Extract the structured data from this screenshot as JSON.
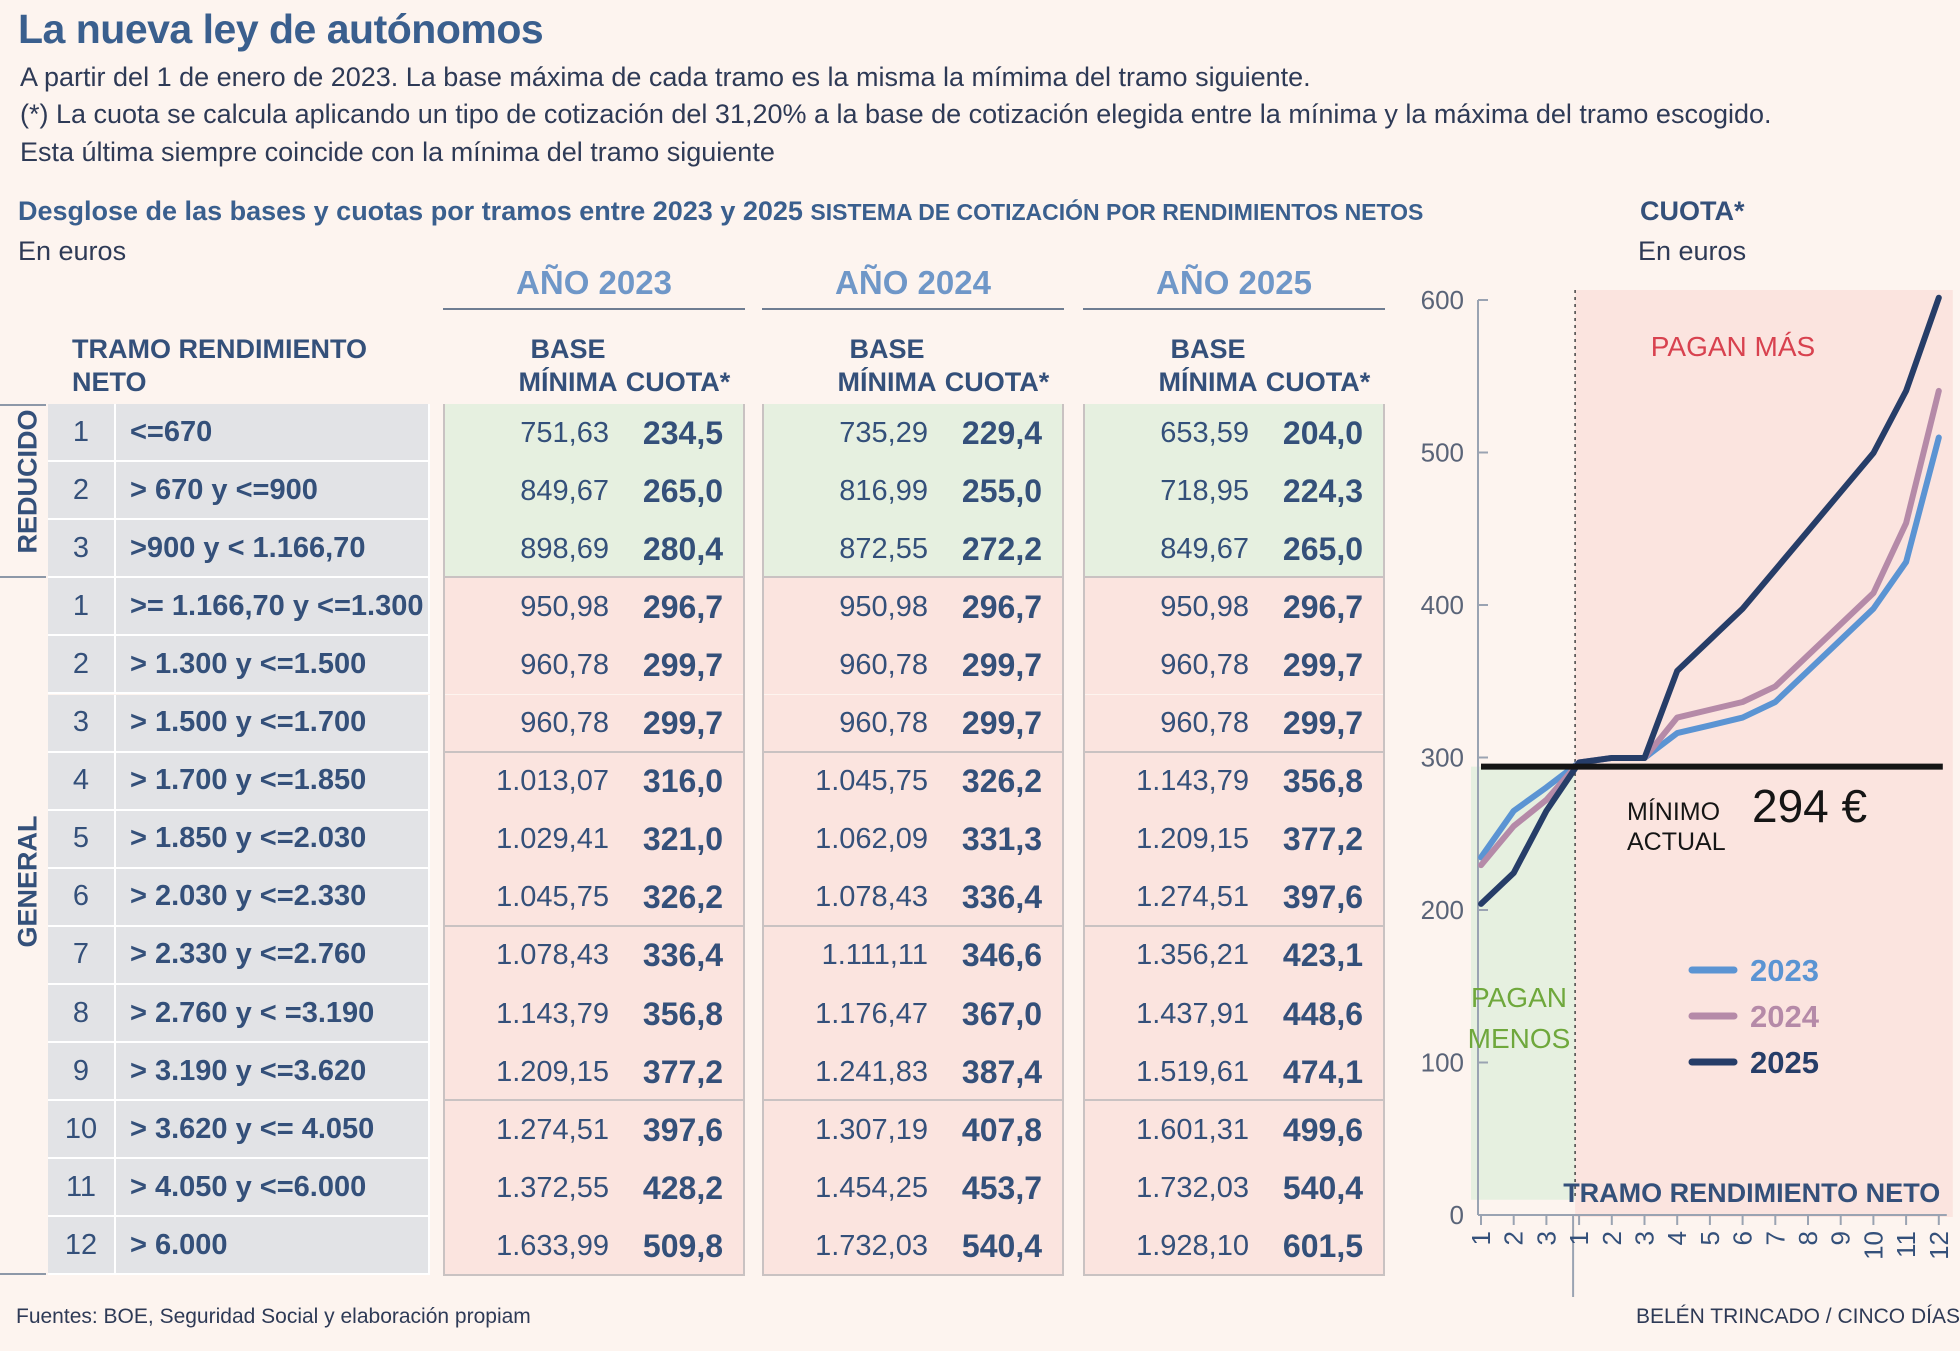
{
  "title": "La nueva ley de autónomos",
  "subtitle_lines": [
    "A partir del 1 de enero de 2023. La base máxima de cada tramo es la misma la mímima del tramo siguiente.",
    "(*) La cuota se calcula aplicando un tipo de cotización del 31,20% a la base de cotización elegida entre la mínima y la máxima del tramo escogido.",
    "Esta última siempre coincide con la mínima del tramo siguiente"
  ],
  "table": {
    "heading": "Desglose de las bases y cuotas por tramos entre 2023 y 2025",
    "heading_small": "SISTEMA DE COTIZACIÓN POR RENDIMIENTOS NETOS",
    "unit": "En euros",
    "tramo_header": [
      "TRAMO RENDIMIENTO",
      "NETO"
    ],
    "col_base": [
      "BASE",
      "MÍNIMA"
    ],
    "col_cuota": "CUOTA*",
    "years": [
      "AÑO 2023",
      "AÑO 2024",
      "AÑO 2025"
    ],
    "group_labels": [
      "REDUCIDO",
      "GENERAL"
    ],
    "rows": [
      {
        "n": "1",
        "label": "<=670",
        "y2023": [
          "751,63",
          "234,5"
        ],
        "y2024": [
          "735,29",
          "229,4"
        ],
        "y2025": [
          "653,59",
          "204,0"
        ]
      },
      {
        "n": "2",
        "label": "> 670 y <=900",
        "y2023": [
          "849,67",
          "265,0"
        ],
        "y2024": [
          "816,99",
          "255,0"
        ],
        "y2025": [
          "718,95",
          "224,3"
        ]
      },
      {
        "n": "3",
        "label": ">900 y < 1.166,70",
        "y2023": [
          "898,69",
          "280,4"
        ],
        "y2024": [
          "872,55",
          "272,2"
        ],
        "y2025": [
          "849,67",
          "265,0"
        ]
      },
      {
        "n": "1",
        "label": ">= 1.166,70 y <=1.300",
        "y2023": [
          "950,98",
          "296,7"
        ],
        "y2024": [
          "950,98",
          "296,7"
        ],
        "y2025": [
          "950,98",
          "296,7"
        ]
      },
      {
        "n": "2",
        "label": "> 1.300 y <=1.500",
        "y2023": [
          "960,78",
          "299,7"
        ],
        "y2024": [
          "960,78",
          "299,7"
        ],
        "y2025": [
          "960,78",
          "299,7"
        ]
      },
      {
        "n": "3",
        "label": "> 1.500 y <=1.700",
        "y2023": [
          "960,78",
          "299,7"
        ],
        "y2024": [
          "960,78",
          "299,7"
        ],
        "y2025": [
          "960,78",
          "299,7"
        ]
      },
      {
        "n": "4",
        "label": "> 1.700 y <=1.850",
        "y2023": [
          "1.013,07",
          "316,0"
        ],
        "y2024": [
          "1.045,75",
          "326,2"
        ],
        "y2025": [
          "1.143,79",
          "356,8"
        ]
      },
      {
        "n": "5",
        "label": "> 1.850 y <=2.030",
        "y2023": [
          "1.029,41",
          "321,0"
        ],
        "y2024": [
          "1.062,09",
          "331,3"
        ],
        "y2025": [
          "1.209,15",
          "377,2"
        ]
      },
      {
        "n": "6",
        "label": "> 2.030 y <=2.330",
        "y2023": [
          "1.045,75",
          "326,2"
        ],
        "y2024": [
          "1.078,43",
          "336,4"
        ],
        "y2025": [
          "1.274,51",
          "397,6"
        ]
      },
      {
        "n": "7",
        "label": "> 2.330 y <=2.760",
        "y2023": [
          "1.078,43",
          "336,4"
        ],
        "y2024": [
          "1.111,11",
          "346,6"
        ],
        "y2025": [
          "1.356,21",
          "423,1"
        ]
      },
      {
        "n": "8",
        "label": "> 2.760 y < =3.190",
        "y2023": [
          "1.143,79",
          "356,8"
        ],
        "y2024": [
          "1.176,47",
          "367,0"
        ],
        "y2025": [
          "1.437,91",
          "448,6"
        ]
      },
      {
        "n": "9",
        "label": "> 3.190 y <=3.620",
        "y2023": [
          "1.209,15",
          "377,2"
        ],
        "y2024": [
          "1.241,83",
          "387,4"
        ],
        "y2025": [
          "1.519,61",
          "474,1"
        ]
      },
      {
        "n": "10",
        "label": "> 3.620 y <= 4.050",
        "y2023": [
          "1.274,51",
          "397,6"
        ],
        "y2024": [
          "1.307,19",
          "407,8"
        ],
        "y2025": [
          "1.601,31",
          "499,6"
        ]
      },
      {
        "n": "11",
        "label": "> 4.050 y <=6.000",
        "y2023": [
          "1.372,55",
          "428,2"
        ],
        "y2024": [
          "1.454,25",
          "453,7"
        ],
        "y2025": [
          "1.732,03",
          "540,4"
        ]
      },
      {
        "n": "12",
        "label": "> 6.000",
        "y2023": [
          "1.633,99",
          "509,8"
        ],
        "y2024": [
          "1.732,03",
          "540,4"
        ],
        "y2025": [
          "1.928,10",
          "601,5"
        ]
      }
    ]
  },
  "colors": {
    "title": "#3a5f8e",
    "green_bg": "#e6f0e0",
    "pink_bg": "#fbe4df",
    "gray_cell": "#e2e3e6",
    "s2023": "#5b94d3",
    "s2024": "#b58aa8",
    "s2025": "#263d68",
    "pagan_mas": "#d8424f",
    "pagan_menos": "#6fa83c"
  },
  "chart_data": {
    "type": "line",
    "title": "CUOTA*",
    "unit": "En euros",
    "xlabel": "TRAMO RENDIMIENTO NETO",
    "x": [
      "1",
      "2",
      "3",
      "1",
      "2",
      "3",
      "4",
      "5",
      "6",
      "7",
      "8",
      "9",
      "10",
      "11",
      "12"
    ],
    "ylim": [
      0,
      600
    ],
    "yticks": [
      0,
      100,
      200,
      300,
      400,
      500,
      600
    ],
    "series": [
      {
        "name": "2023",
        "values": [
          234.5,
          265.0,
          280.4,
          296.7,
          299.7,
          299.7,
          316.0,
          321.0,
          326.2,
          336.4,
          356.8,
          377.2,
          397.6,
          428.2,
          509.8
        ]
      },
      {
        "name": "2024",
        "values": [
          229.4,
          255.0,
          272.2,
          296.7,
          299.7,
          299.7,
          326.2,
          331.3,
          336.4,
          346.6,
          367.0,
          387.4,
          407.8,
          453.7,
          540.4
        ]
      },
      {
        "name": "2025",
        "values": [
          204.0,
          224.3,
          265.0,
          296.7,
          299.7,
          299.7,
          356.8,
          377.2,
          397.6,
          423.1,
          448.6,
          474.1,
          499.6,
          540.4,
          601.5
        ]
      }
    ],
    "reference_line": {
      "value": 294,
      "label_lines": [
        "MÍNIMO",
        "ACTUAL"
      ],
      "value_label": "294 €"
    },
    "regions": [
      "PAGAN MÁS",
      "PAGAN",
      "MENOS"
    ]
  },
  "footer": {
    "sources": "Fuentes:  BOE, Seguridad Social y elaboración propiam",
    "credit": "BELÉN TRINCADO / CINCO DÍAS"
  }
}
